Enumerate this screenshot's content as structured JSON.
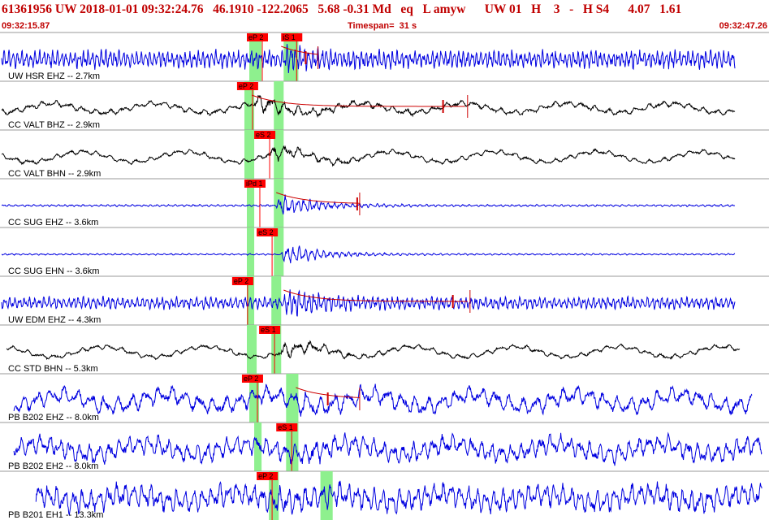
{
  "header": {
    "title": "61361956 UW 2018-01-01 09:32:24.76   46.1910 -122.2065   5.68 -0.31 Md   eq   L amyw      UW 01   H    3   -   H S4      4.07   1.61",
    "start_time": "09:32:15.87",
    "timespan": "Timespan=  31 s",
    "end_time": "09:32:47.26"
  },
  "colors": {
    "header_text": "#c00000",
    "trace_blue": "#0000e0",
    "trace_black": "#000000",
    "pick_box": "#ff0000",
    "pick_window": "#8ef08e",
    "coda_line": "#cc0000",
    "separator": "#999999"
  },
  "chart_data": {
    "type": "line",
    "title": "61361956 UW 2018-01-01 09:32:24.76",
    "xlim": [
      "09:32:15.87",
      "09:32:47.26"
    ],
    "timespan_s": 31,
    "grid": false,
    "traces": [
      {
        "label": "UW HSR EHZ -- 2.7km",
        "color": "blue",
        "start_s": 0.0,
        "end_s": 29.9,
        "onset_s": 11.5,
        "amplitude": 0.45,
        "peak_gain": 1.6,
        "period_s": 0.18,
        "long_wave": 0.0,
        "picks": [
          {
            "label": "eP 2",
            "t_s": 10.0
          },
          {
            "label": "iS 1",
            "t_s": 11.4
          }
        ],
        "windows": [
          {
            "start_s": 10.1,
            "end_s": 10.6
          },
          {
            "start_s": 11.5,
            "end_s": 12.1
          }
        ],
        "coda": {
          "start_s": 11.4,
          "end_s": 12.9,
          "marks_s": [
            12.4
          ]
        }
      },
      {
        "label": "CC VALT BHZ -- 2.9km",
        "color": "black",
        "start_s": 0.0,
        "end_s": 29.9,
        "onset_s": 10.3,
        "amplitude": 0.15,
        "peak_gain": 3.5,
        "period_s": 0.55,
        "long_wave": 0.35,
        "picks": [
          {
            "label": "eP 2",
            "t_s": 9.6
          }
        ],
        "windows": [
          {
            "start_s": 9.9,
            "end_s": 10.3
          },
          {
            "start_s": 11.1,
            "end_s": 11.5
          }
        ],
        "coda": {
          "start_s": 10.2,
          "end_s": 19.0,
          "marks_s": [
            18.0
          ]
        }
      },
      {
        "label": "CC VALT BHN -- 2.9km",
        "color": "black",
        "start_s": 0.0,
        "end_s": 29.9,
        "onset_s": 10.8,
        "amplitude": 0.12,
        "peak_gain": 4.0,
        "period_s": 0.55,
        "long_wave": 0.4,
        "picks": [
          {
            "label": "eS 2",
            "t_s": 10.3
          }
        ],
        "windows": [
          {
            "start_s": 9.9,
            "end_s": 10.3
          },
          {
            "start_s": 11.1,
            "end_s": 11.5
          }
        ],
        "coda": null
      },
      {
        "label": "CC SUG EHZ -- 3.6km",
        "color": "blue",
        "start_s": 0.0,
        "end_s": 29.9,
        "onset_s": 11.2,
        "amplitude": 0.05,
        "peak_gain": 12.0,
        "period_s": 0.25,
        "long_wave": 0.0,
        "picks": [
          {
            "label": "iPd 1",
            "t_s": 9.9
          }
        ],
        "windows": [
          {
            "start_s": 10.0,
            "end_s": 10.3
          },
          {
            "start_s": 11.1,
            "end_s": 11.5
          }
        ],
        "coda": {
          "start_s": 11.2,
          "end_s": 14.6,
          "marks_s": [
            14.5
          ]
        }
      },
      {
        "label": "CC SUG EHN -- 3.6km",
        "color": "blue",
        "start_s": 0.0,
        "end_s": 29.9,
        "onset_s": 11.4,
        "amplitude": 0.04,
        "peak_gain": 14.0,
        "period_s": 0.25,
        "long_wave": 0.0,
        "picks": [
          {
            "label": "eS 2",
            "t_s": 10.4
          }
        ],
        "windows": [
          {
            "start_s": 10.0,
            "end_s": 10.3
          },
          {
            "start_s": 11.1,
            "end_s": 11.5
          }
        ],
        "coda": null
      },
      {
        "label": "UW EDM EHZ -- 4.3km",
        "color": "blue",
        "start_s": 0.0,
        "end_s": 29.9,
        "onset_s": 11.5,
        "amplitude": 0.3,
        "peak_gain": 2.6,
        "period_s": 0.2,
        "long_wave": 0.0,
        "picks": [
          {
            "label": "eP 2",
            "t_s": 9.4
          }
        ],
        "windows": [
          {
            "start_s": 10.0,
            "end_s": 10.3
          },
          {
            "start_s": 11.0,
            "end_s": 11.4
          }
        ],
        "coda": {
          "start_s": 11.5,
          "end_s": 19.1,
          "marks_s": [
            18.4
          ]
        }
      },
      {
        "label": "CC STD BHN -- 5.3km",
        "color": "black",
        "start_s": 0.2,
        "end_s": 30.1,
        "onset_s": 11.3,
        "amplitude": 0.12,
        "peak_gain": 4.0,
        "period_s": 0.55,
        "long_wave": 0.4,
        "picks": [
          {
            "label": "eS 1",
            "t_s": 10.5
          }
        ],
        "windows": [
          {
            "start_s": 10.0,
            "end_s": 10.4
          },
          {
            "start_s": 11.0,
            "end_s": 11.4
          }
        ],
        "coda": null
      },
      {
        "label": "PB B202 EHZ -- 8.0km",
        "color": "blue",
        "start_s": 0.5,
        "end_s": 30.6,
        "onset_s": 11.9,
        "amplitude": 0.45,
        "peak_gain": 1.6,
        "period_s": 0.55,
        "long_wave": 0.45,
        "picks": [
          {
            "label": "eP 2",
            "t_s": 9.8
          }
        ],
        "windows": [
          {
            "start_s": 10.1,
            "end_s": 10.5
          },
          {
            "start_s": 11.6,
            "end_s": 12.1
          }
        ],
        "coda": {
          "start_s": 12.0,
          "end_s": 14.6,
          "marks_s": [
            13.3
          ]
        }
      },
      {
        "label": "PB B202 EH2 -- 8.0km",
        "color": "blue",
        "start_s": 0.5,
        "end_s": 31.0,
        "onset_s": 12.1,
        "amplitude": 0.5,
        "peak_gain": 1.3,
        "period_s": 0.4,
        "long_wave": 0.4,
        "picks": [
          {
            "label": "eS 1",
            "t_s": 11.2
          }
        ],
        "windows": [
          {
            "start_s": 10.3,
            "end_s": 10.6
          },
          {
            "start_s": 11.6,
            "end_s": 12.1
          }
        ],
        "coda": null
      },
      {
        "label": "PB B201 EH1 -- 13.3km",
        "color": "blue",
        "start_s": 1.4,
        "end_s": 31.0,
        "onset_s": 11.2,
        "amplitude": 0.6,
        "peak_gain": 1.2,
        "period_s": 0.35,
        "long_wave": 0.3,
        "picks": [
          {
            "label": "eP 2",
            "t_s": 10.4
          }
        ],
        "windows": [
          {
            "start_s": 10.9,
            "end_s": 11.3
          },
          {
            "start_s": 13.0,
            "end_s": 13.5
          }
        ],
        "coda": null
      }
    ]
  }
}
